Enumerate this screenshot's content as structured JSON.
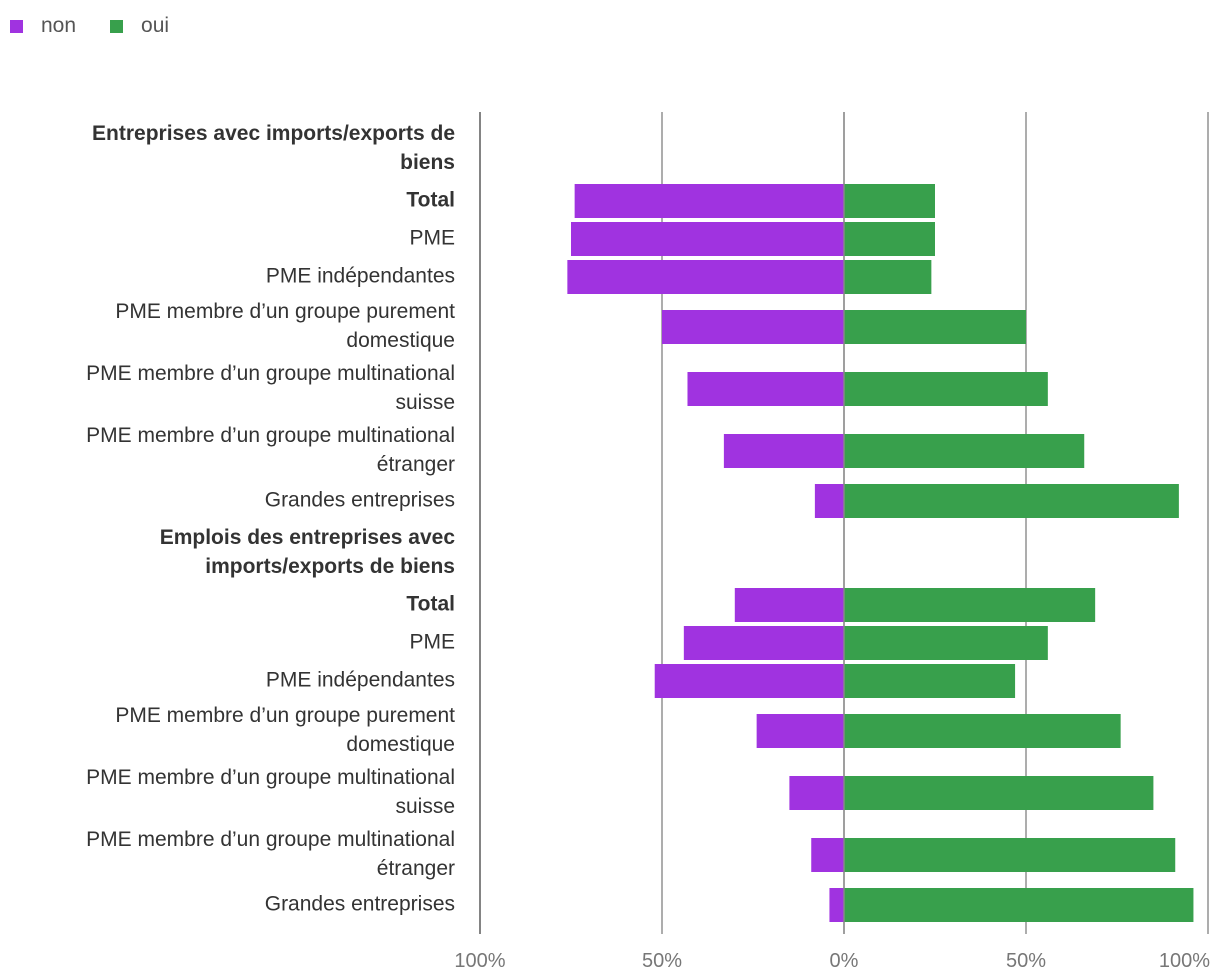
{
  "chart_data": {
    "type": "bar",
    "orientation": "horizontal-diverging",
    "legend": [
      {
        "name": "non",
        "color": "#a033e0"
      },
      {
        "name": "oui",
        "color": "#38a04c"
      }
    ],
    "x_ticks": [
      "100%",
      "50%",
      "0%",
      "50%",
      "100%"
    ],
    "xlim": [
      -100,
      100
    ],
    "groups": [
      {
        "heading": [
          "Entreprises avec imports/exports de",
          "biens"
        ],
        "rows": [
          {
            "label": [
              "Total"
            ],
            "bold": true,
            "non": 74,
            "oui": 25
          },
          {
            "label": [
              "PME"
            ],
            "non": 75,
            "oui": 25
          },
          {
            "label": [
              "PME indépendantes"
            ],
            "non": 76,
            "oui": 24
          },
          {
            "label": [
              "PME membre d’un groupe purement",
              "domestique"
            ],
            "non": 50,
            "oui": 50
          },
          {
            "label": [
              "PME membre d’un groupe multinational",
              "suisse"
            ],
            "non": 43,
            "oui": 56
          },
          {
            "label": [
              "PME membre d’un groupe multinational",
              "étranger"
            ],
            "non": 33,
            "oui": 66
          },
          {
            "label": [
              "Grandes entreprises"
            ],
            "non": 8,
            "oui": 92
          }
        ]
      },
      {
        "heading": [
          "Emplois des entreprises avec",
          "imports/exports de biens"
        ],
        "rows": [
          {
            "label": [
              "Total"
            ],
            "bold": true,
            "non": 30,
            "oui": 69
          },
          {
            "label": [
              "PME"
            ],
            "non": 44,
            "oui": 56
          },
          {
            "label": [
              "PME indépendantes"
            ],
            "non": 52,
            "oui": 47
          },
          {
            "label": [
              "PME membre d’un groupe purement",
              "domestique"
            ],
            "non": 24,
            "oui": 76
          },
          {
            "label": [
              "PME membre d’un groupe multinational",
              "suisse"
            ],
            "non": 15,
            "oui": 85
          },
          {
            "label": [
              "PME membre d’un groupe multinational",
              "étranger"
            ],
            "non": 9,
            "oui": 91
          },
          {
            "label": [
              "Grandes entreprises"
            ],
            "non": 4,
            "oui": 96
          }
        ]
      }
    ]
  }
}
